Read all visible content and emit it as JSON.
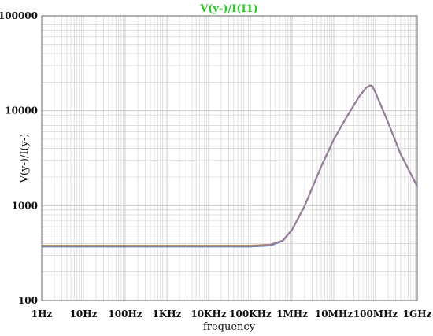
{
  "chart_data": {
    "type": "line",
    "title": "V(y-)/I(I1)",
    "xlabel": "frequency",
    "ylabel": "V(y-)/I(y-)",
    "x_scale": "log",
    "y_scale": "log",
    "xlim": [
      1,
      1000000000
    ],
    "ylim": [
      100,
      100000
    ],
    "grid": true,
    "x_ticks": [
      {
        "value": 1,
        "label": "1Hz"
      },
      {
        "value": 10,
        "label": "10Hz"
      },
      {
        "value": 100,
        "label": "100Hz"
      },
      {
        "value": 1000,
        "label": "1KHz"
      },
      {
        "value": 10000,
        "label": "10KHz"
      },
      {
        "value": 100000,
        "label": "100KHz"
      },
      {
        "value": 1000000,
        "label": "1MHz"
      },
      {
        "value": 10000000,
        "label": "10MHz"
      },
      {
        "value": 100000000,
        "label": "100MHz"
      },
      {
        "value": 1000000000,
        "label": "1GHz"
      }
    ],
    "y_ticks": [
      {
        "value": 100,
        "label": "100"
      },
      {
        "value": 1000,
        "label": "1000"
      },
      {
        "value": 10000,
        "label": "10000"
      },
      {
        "value": 100000,
        "label": "100000"
      }
    ],
    "series": [
      {
        "color": "#c8a040",
        "x": [
          1,
          100000,
          300000,
          600000,
          1000000,
          2000000,
          5000000,
          10000000,
          20000000,
          40000000,
          60000000,
          75000000,
          85000000,
          100000000,
          200000000,
          400000000,
          1000000000
        ],
        "y": [
          380,
          380,
          390,
          430,
          560,
          1000,
          2600,
          5000,
          8500,
          14000,
          17500,
          18500,
          18000,
          15500,
          7500,
          3500,
          1600
        ]
      },
      {
        "color": "#5090d0",
        "x": [
          1,
          100000,
          300000,
          600000,
          1000000,
          2000000,
          5000000,
          10000000,
          20000000,
          40000000,
          60000000,
          75000000,
          85000000,
          100000000,
          200000000,
          400000000,
          1000000000
        ],
        "y": [
          370,
          370,
          380,
          425,
          555,
          990,
          2580,
          4980,
          8480,
          13980,
          17480,
          18480,
          17980,
          15480,
          7480,
          3480,
          1590
        ]
      },
      {
        "color": "#9a7a9a",
        "x": [
          1,
          100000,
          300000,
          600000,
          1000000,
          2000000,
          5000000,
          10000000,
          20000000,
          40000000,
          60000000,
          75000000,
          85000000,
          100000000,
          200000000,
          400000000,
          1000000000
        ],
        "y": [
          376,
          376,
          386,
          428,
          558,
          995,
          2590,
          4990,
          8490,
          13990,
          17490,
          18490,
          17990,
          15490,
          7490,
          3490,
          1595
        ]
      }
    ]
  },
  "colors": {
    "title": "#22cc22",
    "grid": "#cccccc",
    "axis": "#666666"
  }
}
